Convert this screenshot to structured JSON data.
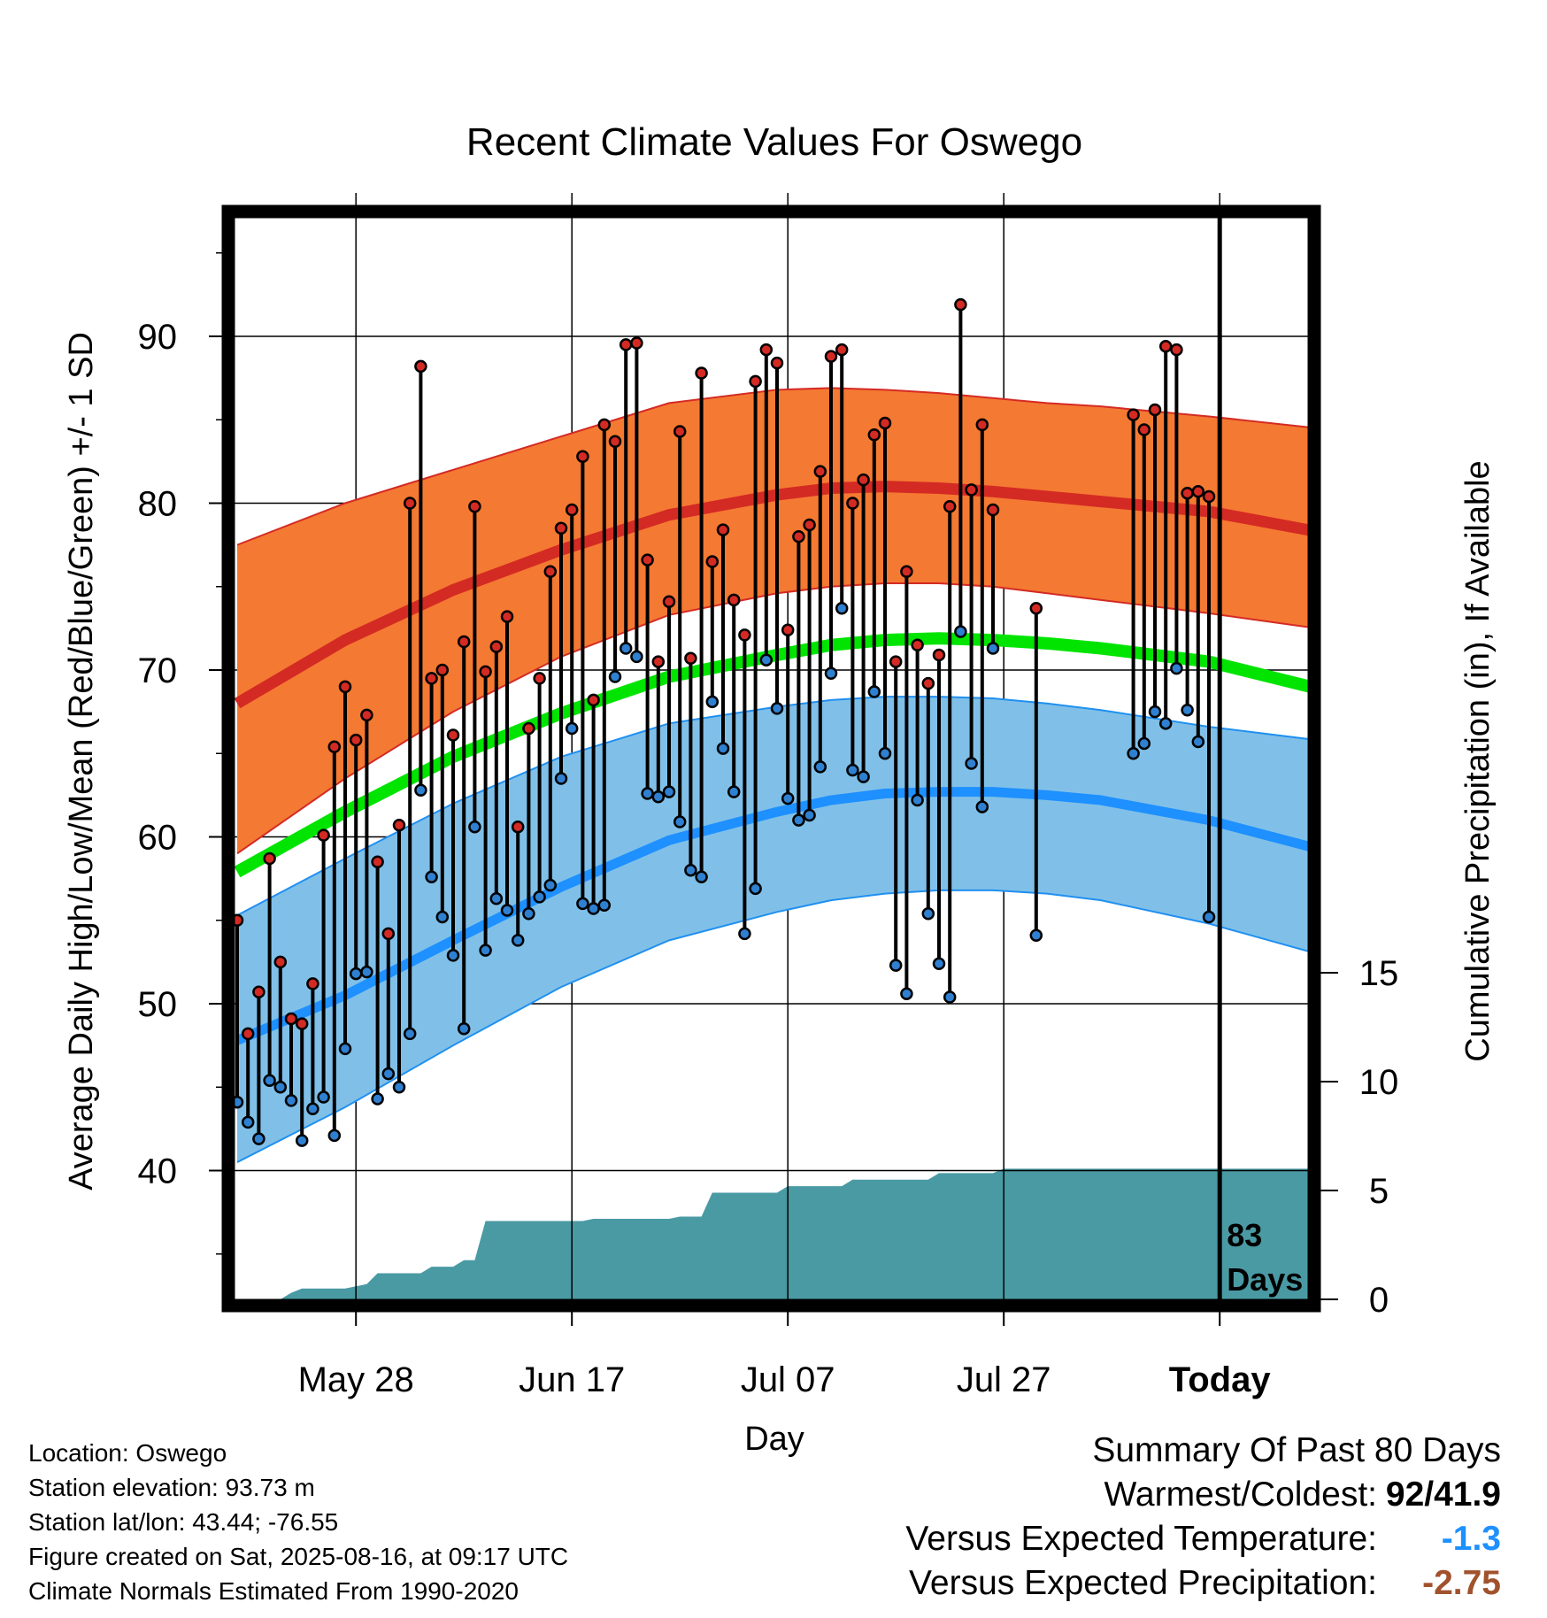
{
  "chart_data": {
    "type": "line",
    "title": "Recent Climate Values For Oswego",
    "xlabel": "Day",
    "ylabel": "Average Daily High/Low/Mean (Red/Blue/Green) +/- 1 SD",
    "y2label": "Cumulative Precipitation (in), If Available",
    "x_tick_labels": [
      "May 28",
      "Jun 17",
      "Jul 07",
      "Jul 27",
      "Today"
    ],
    "x_tick_days": [
      11,
      31,
      51,
      71,
      91
    ],
    "xlim": [
      0,
      101
    ],
    "y_ticks": [
      40,
      50,
      60,
      70,
      80,
      90
    ],
    "ylim": [
      32,
      97
    ],
    "y2_ticks": [
      0,
      5,
      10,
      15
    ],
    "y2lim": [
      0,
      30.5
    ],
    "today_day": 91,
    "today_label": "83\nDays",
    "grid": true,
    "colors": {
      "high_band": "#f47932",
      "high_band_edge": "#d42a24",
      "high_mean": "#d42a24",
      "low_band": "#80c0e8",
      "low_band_edge": "#2090f0",
      "low_mean": "#1e90ff",
      "mean_line": "#00e400",
      "precip": "#4a9aa4",
      "high_dot": "#d42a24",
      "low_dot": "#2f80d0"
    },
    "normal_days": [
      0,
      10,
      20,
      30,
      40,
      50,
      55,
      60,
      65,
      70,
      75,
      80,
      90,
      100
    ],
    "normal_high": [
      68.0,
      71.8,
      74.8,
      77.2,
      79.3,
      80.5,
      80.9,
      81.0,
      80.9,
      80.7,
      80.4,
      80.1,
      79.5,
      78.3
    ],
    "normal_high_sd_upper": [
      77.5,
      80.0,
      82.0,
      84.0,
      86.0,
      86.8,
      86.9,
      86.8,
      86.6,
      86.3,
      86.0,
      85.8,
      85.2,
      84.5
    ],
    "normal_high_sd_lower": [
      59.0,
      63.5,
      67.5,
      70.8,
      73.3,
      74.6,
      75.0,
      75.2,
      75.2,
      75.0,
      74.6,
      74.2,
      73.4,
      72.5
    ],
    "normal_low": [
      47.8,
      50.5,
      53.8,
      57.0,
      59.8,
      61.5,
      62.2,
      62.6,
      62.7,
      62.7,
      62.5,
      62.2,
      61.0,
      59.3
    ],
    "normal_low_sd_upper": [
      55.3,
      58.7,
      62.0,
      64.8,
      66.8,
      67.8,
      68.2,
      68.4,
      68.4,
      68.3,
      68.0,
      67.6,
      66.6,
      65.8
    ],
    "normal_low_sd_lower": [
      40.5,
      43.8,
      47.5,
      51.0,
      53.8,
      55.5,
      56.2,
      56.6,
      56.8,
      56.8,
      56.6,
      56.2,
      54.8,
      53.0
    ],
    "normal_mean": [
      57.9,
      61.5,
      64.8,
      67.4,
      69.6,
      70.9,
      71.5,
      71.8,
      71.9,
      71.8,
      71.6,
      71.3,
      70.5,
      68.9
    ],
    "daily_high": [
      55.0,
      48.2,
      50.7,
      58.7,
      52.5,
      49.1,
      48.8,
      51.2,
      60.1,
      65.4,
      69.0,
      65.8,
      67.3,
      58.5,
      54.2,
      60.7,
      80.0,
      88.2,
      69.5,
      70.0,
      66.1,
      71.7,
      79.8,
      69.9,
      71.4,
      73.2,
      60.6,
      66.5,
      69.5,
      75.9,
      78.5,
      79.6,
      82.8,
      68.2,
      84.7,
      83.7,
      89.5,
      89.6,
      76.6,
      70.5,
      74.1,
      84.3,
      70.7,
      87.8,
      76.5,
      78.4,
      74.2,
      72.1,
      87.3,
      89.2,
      88.4,
      72.4,
      78.0,
      78.7,
      81.9,
      88.8,
      89.2,
      80.0,
      81.4,
      84.1,
      84.8,
      70.5,
      75.9,
      71.5,
      69.2,
      70.9,
      79.8,
      91.9,
      80.8,
      84.7,
      79.6,
      null,
      null,
      null,
      73.7,
      null,
      null,
      null,
      null,
      null,
      null,
      null,
      null,
      85.3,
      84.4,
      85.6,
      89.4,
      89.2,
      80.6,
      80.7,
      80.4
    ],
    "daily_low": [
      44.1,
      42.9,
      41.9,
      45.4,
      45.0,
      44.2,
      41.8,
      43.7,
      44.4,
      42.1,
      47.3,
      51.8,
      51.9,
      44.3,
      45.8,
      45.0,
      48.2,
      62.8,
      57.6,
      55.2,
      52.9,
      48.5,
      60.6,
      53.2,
      56.3,
      55.6,
      53.8,
      55.4,
      56.4,
      57.1,
      63.5,
      66.5,
      56.0,
      55.7,
      55.9,
      69.6,
      71.3,
      70.8,
      62.6,
      62.4,
      62.7,
      60.9,
      58.0,
      57.6,
      68.1,
      65.3,
      62.7,
      54.2,
      56.9,
      70.6,
      67.7,
      62.3,
      61.0,
      61.3,
      64.2,
      69.8,
      73.7,
      64.0,
      63.6,
      68.7,
      65.0,
      52.3,
      50.6,
      62.2,
      55.4,
      52.4,
      50.4,
      72.3,
      64.4,
      61.8,
      71.3,
      null,
      null,
      null,
      54.1,
      null,
      null,
      null,
      null,
      null,
      null,
      null,
      null,
      65.0,
      65.6,
      67.5,
      66.8,
      70.1,
      67.6,
      65.7,
      55.2
    ],
    "precip_days": [
      0,
      4,
      5,
      6,
      10,
      11,
      12,
      13,
      14,
      17,
      18,
      20,
      21,
      22,
      23,
      32,
      33,
      40,
      41,
      43,
      44,
      50,
      51,
      56,
      57,
      64,
      65,
      70,
      71,
      101
    ],
    "precip_cum": [
      0,
      0,
      0.3,
      0.5,
      0.5,
      0.6,
      0.7,
      1.2,
      1.2,
      1.2,
      1.5,
      1.5,
      1.8,
      1.8,
      3.6,
      3.6,
      3.7,
      3.7,
      3.8,
      3.8,
      4.9,
      4.9,
      5.2,
      5.2,
      5.5,
      5.5,
      5.8,
      5.8,
      6.0,
      6.0
    ]
  },
  "footer": {
    "location": "Location: Oswego",
    "elevation": "Station elevation: 93.73 m",
    "latlon": "Station lat/lon: 43.44; -76.55",
    "created": "Figure created on Sat, 2025-08-16, at 09:17 UTC",
    "normals": "Climate Normals Estimated From 1990-2020"
  },
  "summary": {
    "heading": "Summary Of Past 80 Days",
    "warm_cold_label": "Warmest/Coldest:",
    "warm_cold_value": "92/41.9",
    "temp_label": "Versus Expected Temperature:",
    "temp_value": "-1.3",
    "temp_color": "#1e90ff",
    "precip_label": "Versus Expected Precipitation:",
    "precip_value": "-2.75",
    "precip_color": "#a0522d"
  }
}
